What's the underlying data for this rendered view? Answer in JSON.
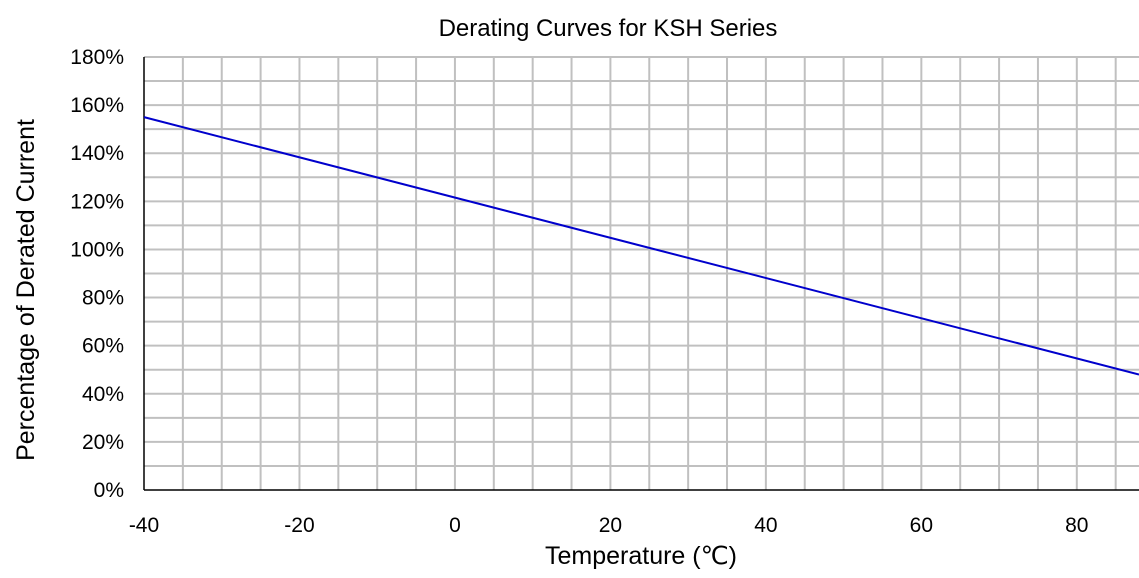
{
  "chart_data": {
    "type": "line",
    "title": "Derating Curves for KSH Series",
    "xlabel": "Temperature (℃)",
    "ylabel": "Percentage of Derated Current",
    "xlim": [
      -40,
      88
    ],
    "ylim": [
      0,
      180
    ],
    "x_ticks": [
      -40,
      -20,
      0,
      20,
      40,
      60,
      80
    ],
    "x_tick_labels": [
      "-40",
      "-20",
      "0",
      "20",
      "40",
      "60",
      "80"
    ],
    "y_ticks": [
      0,
      20,
      40,
      60,
      80,
      100,
      120,
      140,
      160,
      180
    ],
    "y_tick_labels": [
      "0%",
      "20%",
      "40%",
      "60%",
      "80%",
      "100%",
      "120%",
      "140%",
      "160%",
      "180%"
    ],
    "x_minor_step": 5,
    "y_minor_step": 10,
    "grid": true,
    "legend": "none",
    "series": [
      {
        "color": "#0000cc",
        "x": [
          -40,
          88
        ],
        "y": [
          155,
          48
        ]
      }
    ]
  }
}
